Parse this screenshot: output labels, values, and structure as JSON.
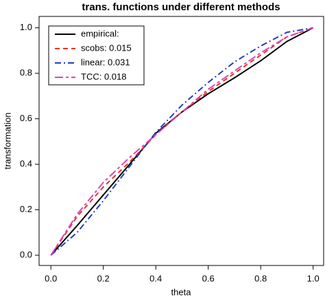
{
  "chart_data": {
    "type": "line",
    "title": "trans. functions under different methods",
    "x_label": "theta",
    "y_label": "transformation",
    "x": [
      0,
      0.1,
      0.2,
      0.3,
      0.4,
      0.5,
      0.6,
      0.7,
      0.8,
      0.9,
      1
    ],
    "series": [
      {
        "name": "empirical:",
        "color": "#000000",
        "dash": "solid",
        "values": [
          0,
          0.13,
          0.265,
          0.4,
          0.536,
          0.63,
          0.71,
          0.78,
          0.855,
          0.94,
          1
        ]
      },
      {
        "name": "scobs: 0.015",
        "color": "#e8341c",
        "dash": "dashed",
        "values": [
          0,
          0.17,
          0.3,
          0.41,
          0.53,
          0.63,
          0.72,
          0.8,
          0.88,
          0.96,
          1
        ]
      },
      {
        "name": "linear: 0.031",
        "color": "#1f3fbf",
        "dash": "dashdot",
        "values": [
          0,
          0.1,
          0.24,
          0.39,
          0.54,
          0.66,
          0.76,
          0.85,
          0.92,
          0.98,
          1
        ]
      },
      {
        "name": "TCC: 0.018",
        "color": "#e040c0",
        "dash": "longdash",
        "values": [
          0,
          0.18,
          0.32,
          0.43,
          0.53,
          0.63,
          0.73,
          0.81,
          0.89,
          0.96,
          1
        ]
      }
    ],
    "xlim": [
      -0.045,
      1.04
    ],
    "ylim": [
      -0.045,
      1.05
    ],
    "xticks": [
      {
        "value": 0,
        "label": "0.0"
      },
      0.2,
      0.4,
      0.6,
      0.8,
      {
        "value": 1,
        "label": "1.0"
      }
    ],
    "yticks": [
      {
        "value": 0,
        "label": "0.0"
      },
      0.2,
      0.4,
      0.6,
      0.8,
      {
        "value": 1,
        "label": "1.0"
      }
    ],
    "legend": "top-left"
  }
}
